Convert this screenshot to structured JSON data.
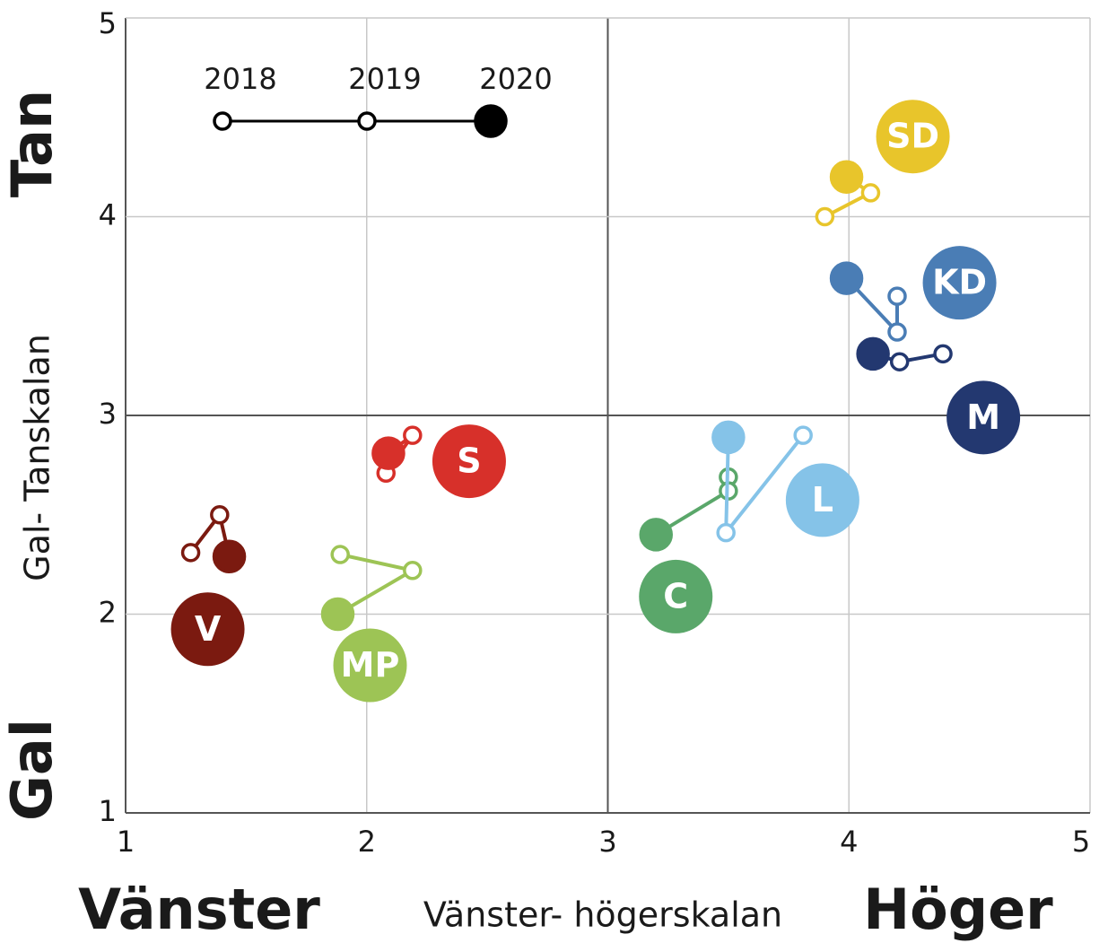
{
  "chart_data": {
    "type": "scatter",
    "xlabel": "Vänster- högerskalan",
    "ylabel": "Gal- Tanskalan",
    "annotations": {
      "left": "Vänster",
      "right": "Höger",
      "top": "Tan",
      "bottom": "Gal"
    },
    "years": [
      "2018",
      "2019",
      "2020"
    ],
    "xlim": [
      1,
      5
    ],
    "ylim": [
      1,
      5
    ],
    "xticks": [
      1,
      2,
      3,
      4,
      5
    ],
    "yticks": [
      1,
      2,
      3,
      4,
      5
    ],
    "grid": true,
    "series": [
      {
        "name": "V",
        "color": "#7b1a10",
        "x": [
          1.27,
          1.39,
          1.43
        ],
        "y": [
          2.31,
          2.5,
          2.29
        ]
      },
      {
        "name": "MP",
        "color": "#9dc455",
        "x": [
          1.89,
          2.19,
          1.88
        ],
        "y": [
          2.3,
          2.22,
          2.0
        ]
      },
      {
        "name": "S",
        "color": "#d7302a",
        "x": [
          2.08,
          2.19,
          2.09
        ],
        "y": [
          2.71,
          2.9,
          2.81
        ]
      },
      {
        "name": "C",
        "color": "#5aa76a",
        "x": [
          3.5,
          3.5,
          3.2
        ],
        "y": [
          2.69,
          2.62,
          2.4
        ]
      },
      {
        "name": "L",
        "color": "#85c3e8",
        "x": [
          3.81,
          3.49,
          3.5
        ],
        "y": [
          2.9,
          2.41,
          2.89
        ]
      },
      {
        "name": "SD",
        "color": "#e8c52b",
        "x": [
          3.9,
          4.09,
          3.99
        ],
        "y": [
          4.0,
          4.12,
          4.2
        ]
      },
      {
        "name": "KD",
        "color": "#4a7db5",
        "x": [
          4.2,
          4.2,
          3.99
        ],
        "y": [
          3.6,
          3.42,
          3.69
        ]
      },
      {
        "name": "M",
        "color": "#233870",
        "x": [
          4.39,
          4.21,
          4.1
        ],
        "y": [
          3.31,
          3.27,
          3.31
        ]
      }
    ]
  }
}
